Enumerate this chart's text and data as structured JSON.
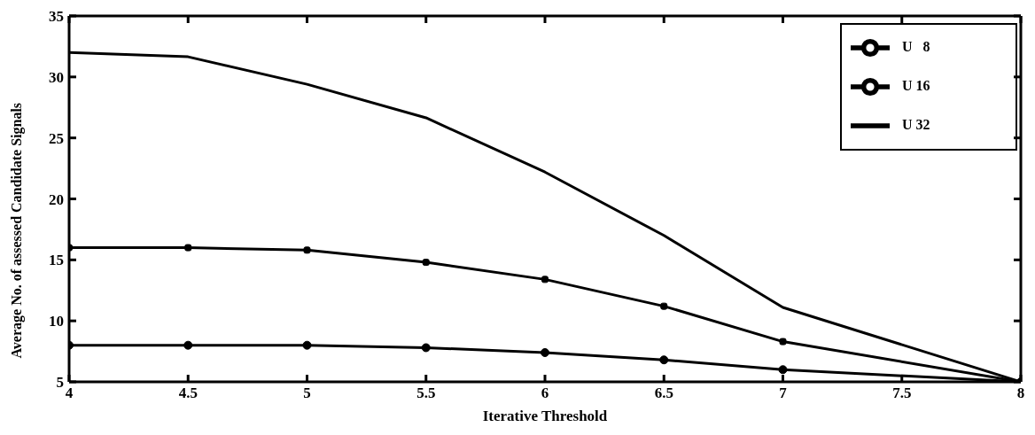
{
  "chart_data": {
    "type": "line",
    "xlabel": "Iterative Threshold",
    "ylabel": "Average No. of assessed Candidate Signals",
    "x": [
      4,
      4.5,
      5,
      5.5,
      6,
      6.5,
      7,
      8
    ],
    "series": [
      {
        "name": "U 32",
        "color": "#000000",
        "marker": "none",
        "values": [
          32,
          31.65,
          29.4,
          26.65,
          22.2,
          17,
          11.1,
          5
        ]
      },
      {
        "name": "U 16",
        "color": "#000000",
        "marker": "square",
        "values": [
          16,
          16,
          15.8,
          14.8,
          13.4,
          11.2,
          8.3,
          5
        ]
      },
      {
        "name": "U   8",
        "color": "#000000",
        "marker": "circle",
        "values": [
          8,
          8,
          8,
          7.8,
          7.4,
          6.8,
          6.0,
          5
        ]
      }
    ],
    "xlim": [
      4,
      8
    ],
    "xticks": [
      4,
      4.5,
      5,
      5.5,
      6,
      6.5,
      7,
      7.5,
      8
    ],
    "ylim": [
      5,
      35
    ],
    "yticks": [
      5,
      10,
      15,
      20,
      25,
      30,
      35
    ],
    "grid": false,
    "legend": "top right",
    "line_style": "solid"
  }
}
